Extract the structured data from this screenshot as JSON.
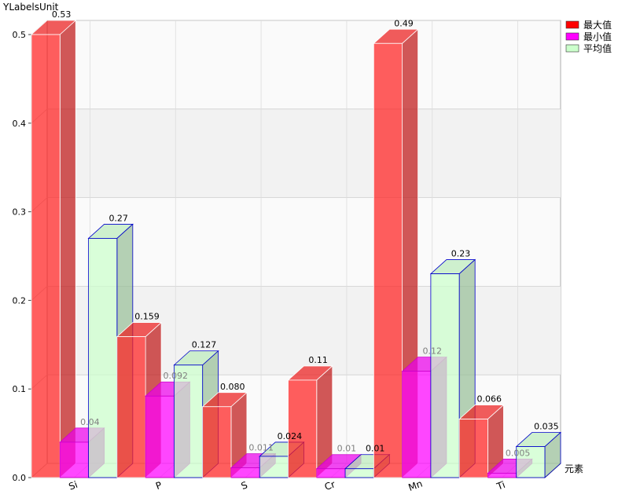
{
  "chart_data": {
    "type": "bar",
    "ylabel": "YLabelsUnit",
    "xlabel": "元素",
    "categories": [
      "Si",
      "P",
      "S",
      "Cr",
      "Mn",
      "Ti"
    ],
    "ylim": [
      0,
      0.5
    ],
    "yticks": [
      "0.0",
      "0.1",
      "0.2",
      "0.3",
      "0.4",
      "0.5"
    ],
    "grid": true,
    "legend_position": "top-right",
    "series": [
      {
        "name": "最大值",
        "values": [
          0.53,
          0.159,
          0.08,
          0.11,
          0.49,
          0.066
        ],
        "labels": [
          "0.53",
          "0.159",
          "0.080",
          "0.11",
          "0.49",
          "0.066"
        ],
        "color": "#ff2020",
        "edge": "#ffffff",
        "legend_swatch": "#ff0000",
        "label_color": "#000000"
      },
      {
        "name": "最小值",
        "values": [
          0.04,
          0.092,
          0.011,
          0.01,
          0.12,
          0.005
        ],
        "labels": [
          "0.04",
          "0.092",
          "0.011",
          "0.01",
          "0.12",
          "0.005"
        ],
        "color": "#ff00ff",
        "edge": "#cc00cc",
        "legend_swatch": "#ff00ff",
        "label_color": "#808080"
      },
      {
        "name": "平均值",
        "values": [
          0.27,
          0.127,
          0.024,
          0.01,
          0.23,
          0.035
        ],
        "labels": [
          "0.27",
          "0.127",
          "0.024",
          "0.01",
          "0.23",
          "0.035"
        ],
        "color": "#ccffcc",
        "edge": "#0000cc",
        "legend_swatch": "#ccffcc",
        "label_color": "#000000"
      }
    ]
  }
}
